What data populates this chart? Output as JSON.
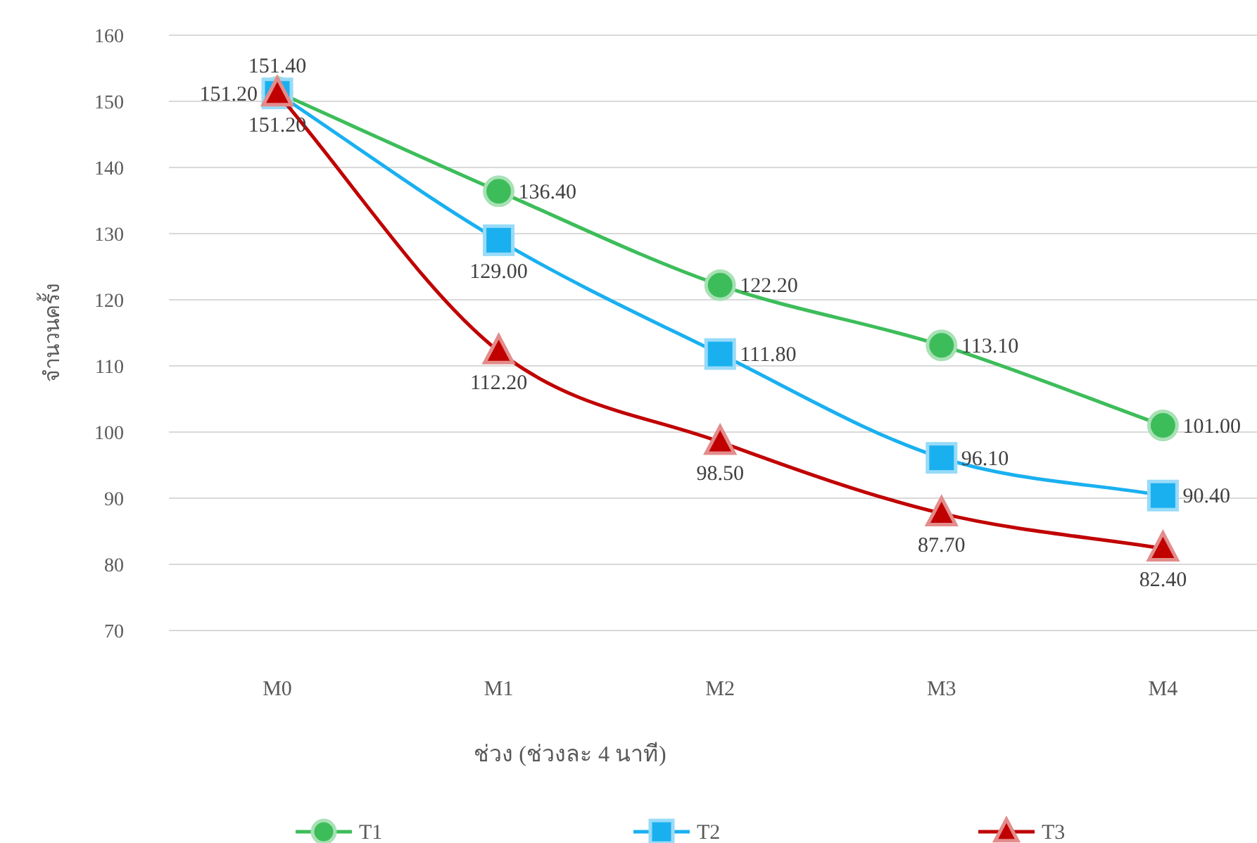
{
  "chart_data": {
    "type": "line",
    "xlabel": "ช่วง (ช่วงละ 4 นาที)",
    "ylabel": "จำนวนครั้ง",
    "categories": [
      "M0",
      "M1",
      "M2",
      "M3",
      "M4"
    ],
    "ylim": [
      70,
      160
    ],
    "yticks": [
      70,
      80,
      90,
      100,
      110,
      120,
      130,
      140,
      150,
      160
    ],
    "grid": "y",
    "legend": "bottom",
    "line_style": "solid",
    "series": [
      {
        "name": "T1",
        "color": "#3dbd5a",
        "marker": "circle",
        "values": [
          151.4,
          136.4,
          122.2,
          113.1,
          101.0
        ],
        "value_labels": [
          "151.40",
          "136.40",
          "122.20",
          "113.10",
          "101.00"
        ]
      },
      {
        "name": "T2",
        "color": "#1ab0f0",
        "marker": "square",
        "values": [
          151.2,
          129.0,
          111.8,
          96.1,
          90.4
        ],
        "value_labels": [
          "151.20",
          "129.00",
          "111.80",
          "96.10",
          "90.40"
        ]
      },
      {
        "name": "T3",
        "color": "#c00000",
        "marker": "triangle",
        "values": [
          151.2,
          112.2,
          98.5,
          87.7,
          82.4
        ],
        "value_labels": [
          "151.20",
          "112.20",
          "98.50",
          "87.70",
          "82.40"
        ]
      }
    ]
  }
}
